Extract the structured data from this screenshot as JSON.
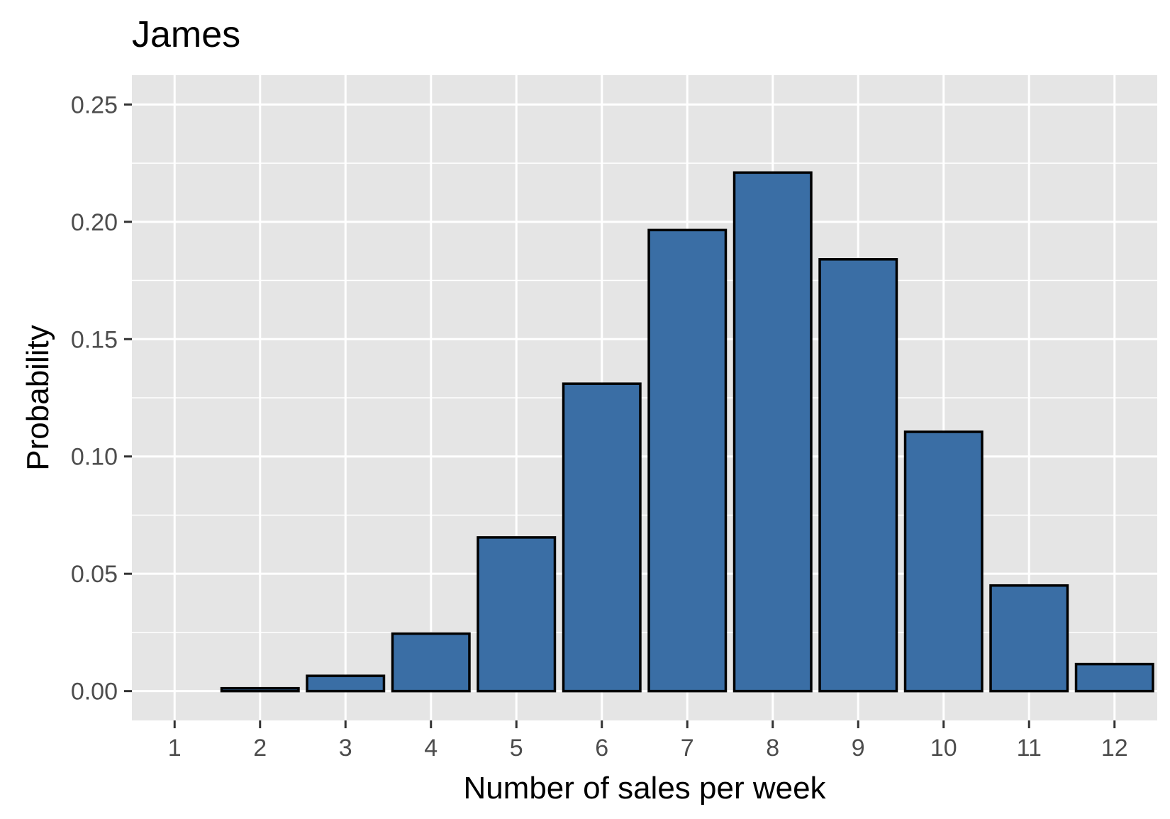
{
  "chart_data": {
    "type": "bar",
    "title": "James",
    "xlabel": "Number of sales per week",
    "ylabel": "Probability",
    "categories": [
      "1",
      "2",
      "3",
      "4",
      "5",
      "6",
      "7",
      "8",
      "9",
      "10",
      "11",
      "12"
    ],
    "values": [
      0.0,
      0.0012,
      0.0065,
      0.0245,
      0.0655,
      0.131,
      0.1965,
      0.221,
      0.184,
      0.1105,
      0.045,
      0.0115
    ],
    "ylim": [
      -0.0125,
      0.2625
    ],
    "yticks": [
      "0.00",
      "0.05",
      "0.10",
      "0.15",
      "0.20",
      "0.25"
    ],
    "ytick_values": [
      0,
      0.05,
      0.1,
      0.15,
      0.2,
      0.25
    ],
    "grid": true,
    "colors": {
      "bar_fill": "#3a6ea5",
      "bar_outline": "#000000",
      "panel_background": "#e5e5e5",
      "grid": "#ffffff"
    }
  }
}
